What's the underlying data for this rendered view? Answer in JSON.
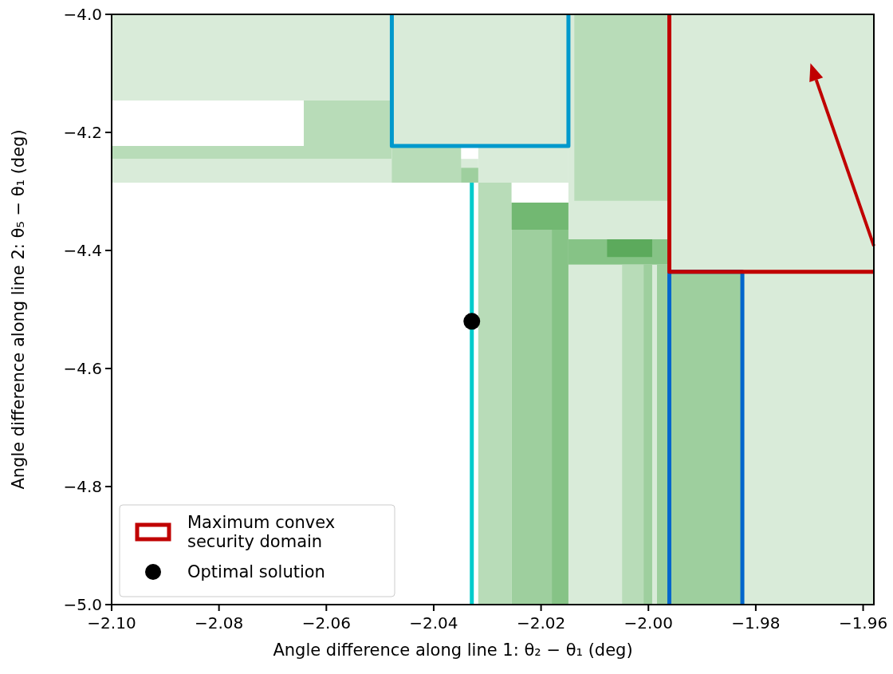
{
  "chart_data": {
    "type": "line",
    "xlabel": "Angle difference along line 1: θ₂ − θ₁ (deg)",
    "ylabel": "Angle difference along line 2: θ₅ − θ₁ (deg)",
    "xlim": [
      -2.1,
      -1.958
    ],
    "ylim": [
      -5.0,
      -4.0
    ],
    "xticks": [
      {
        "value": -2.1,
        "label": "−2.10"
      },
      {
        "value": -2.08,
        "label": "−2.08"
      },
      {
        "value": -2.06,
        "label": "−2.06"
      },
      {
        "value": -2.04,
        "label": "−2.04"
      },
      {
        "value": -2.02,
        "label": "−2.02"
      },
      {
        "value": -2.0,
        "label": "−2.00"
      },
      {
        "value": -1.98,
        "label": "−1.98"
      },
      {
        "value": -1.96,
        "label": "−1.96"
      }
    ],
    "yticks": [
      {
        "value": -5.0,
        "label": "−5.0"
      },
      {
        "value": -4.8,
        "label": "−4.8"
      },
      {
        "value": -4.6,
        "label": "−4.6"
      },
      {
        "value": -4.4,
        "label": "−4.4"
      },
      {
        "value": -4.2,
        "label": "−4.2"
      },
      {
        "value": -4.0,
        "label": "−4.0"
      }
    ],
    "legend": "bottom left",
    "series": [
      {
        "color": "#d9ebd9",
        "x": [
          -2.1,
          -2.0478
        ],
        "values": [
          null,
          null
        ],
        "lower": [
          -4.146,
          -4.146
        ],
        "upper": [
          -4.0,
          -4.0
        ]
      },
      {
        "color": "#d9ebd9",
        "x": [
          -2.0478,
          -2.0149
        ],
        "values": [
          null,
          null
        ],
        "lower": [
          -4.223,
          -4.223
        ],
        "upper": [
          -4.0,
          -4.0
        ]
      },
      {
        "color": "#d9ebd9",
        "x": [
          -2.0149,
          -1.9961
        ],
        "values": [
          null,
          null
        ],
        "lower": [
          -4.381,
          -4.381
        ],
        "upper": [
          -4.0,
          -4.0
        ]
      },
      {
        "color": "#b8dcb8",
        "x": [
          -2.0138,
          -1.9961
        ],
        "values": [
          null,
          null
        ],
        "lower": [
          -4.316,
          -4.316
        ],
        "upper": [
          -4.0,
          -4.0
        ]
      },
      {
        "color": "#d9ebd9",
        "x": [
          -1.9961,
          -1.958
        ],
        "values": [
          null,
          null
        ],
        "lower": [
          -4.436,
          -4.436
        ],
        "upper": [
          -4.0,
          -4.0
        ]
      },
      {
        "color": "#b8dcb8",
        "x": [
          -2.0642,
          -2.0478
        ],
        "values": [
          null,
          null
        ],
        "lower": [
          -4.223,
          -4.223
        ],
        "upper": [
          -4.146,
          -4.146
        ]
      },
      {
        "color": "#d9ebd9",
        "x": [
          -2.1,
          -2.0317
        ],
        "values": [
          null,
          null
        ],
        "lower": [
          -4.285,
          -4.285
        ],
        "upper": [
          -4.245,
          -4.245
        ]
      },
      {
        "color": "#b8dcb8",
        "x": [
          -2.1,
          -2.0478
        ],
        "values": [
          null,
          null
        ],
        "lower": [
          -4.245,
          -4.245
        ],
        "upper": [
          -4.223,
          -4.223
        ]
      },
      {
        "color": "#d9ebd9",
        "x": [
          -2.0317,
          -2.0149
        ],
        "values": [
          null,
          null
        ],
        "lower": [
          -4.285,
          -4.285
        ],
        "upper": [
          -4.223,
          -4.223
        ]
      },
      {
        "color": "#b8dcb8",
        "x": [
          -2.0478,
          -2.0349
        ],
        "values": [
          null,
          null
        ],
        "lower": [
          -4.285,
          -4.285
        ],
        "upper": [
          -4.223,
          -4.223
        ]
      },
      {
        "color": "#9ecf9e",
        "x": [
          -2.0349,
          -2.0317
        ],
        "values": [
          null,
          null
        ],
        "lower": [
          -4.285,
          -4.285
        ],
        "upper": [
          -4.26,
          -4.26
        ]
      },
      {
        "color": "#d9ebd9",
        "x": [
          -2.0149,
          -1.9961
        ],
        "values": [
          null,
          null
        ],
        "lower": [
          -5.0,
          -5.0
        ],
        "upper": [
          -4.424,
          -4.424
        ]
      },
      {
        "color": "#b8dcb8",
        "x": [
          -2.0317,
          -2.0255
        ],
        "values": [
          null,
          null
        ],
        "lower": [
          -5.0,
          -5.0
        ],
        "upper": [
          -4.285,
          -4.285
        ]
      },
      {
        "color": "#9ecf9e",
        "x": [
          -2.0255,
          -2.018
        ],
        "values": [
          null,
          null
        ],
        "lower": [
          -5.0,
          -5.0
        ],
        "upper": [
          -4.365,
          -4.365
        ]
      },
      {
        "color": "#86c386",
        "x": [
          -2.018,
          -2.0149
        ],
        "values": [
          null,
          null
        ],
        "lower": [
          -5.0,
          -5.0
        ],
        "upper": [
          -4.365,
          -4.365
        ]
      },
      {
        "color": "#72b872",
        "x": [
          -2.0255,
          -2.0149
        ],
        "values": [
          null,
          null
        ],
        "lower": [
          -4.365,
          -4.365
        ],
        "upper": [
          -4.319,
          -4.319
        ]
      },
      {
        "color": "#86c386",
        "x": [
          -2.0149,
          -1.9961
        ],
        "values": [
          null,
          null
        ],
        "lower": [
          -4.424,
          -4.424
        ],
        "upper": [
          -4.381,
          -4.381
        ]
      },
      {
        "color": "#5caa5c",
        "x": [
          -2.0077,
          -1.9993
        ],
        "values": [
          null,
          null
        ],
        "lower": [
          -4.411,
          -4.411
        ],
        "upper": [
          -4.381,
          -4.381
        ]
      },
      {
        "color": "#b8dcb8",
        "x": [
          -2.0049,
          -2.0009
        ],
        "values": [
          null,
          null
        ],
        "lower": [
          -5.0,
          -5.0
        ],
        "upper": [
          -4.424,
          -4.424
        ]
      },
      {
        "color": "#9ecf9e",
        "x": [
          -2.0009,
          -1.9993
        ],
        "values": [
          null,
          null
        ],
        "lower": [
          -5.0,
          -5.0
        ],
        "upper": [
          -4.424,
          -4.424
        ]
      },
      {
        "color": "#9ecf9e",
        "x": [
          -1.9984,
          -1.9961
        ],
        "values": [
          null,
          null
        ],
        "lower": [
          -5.0,
          -5.0
        ],
        "upper": [
          -4.424,
          -4.424
        ]
      },
      {
        "color": "#d9ebd9",
        "x": [
          -1.9825,
          -1.958
        ],
        "values": [
          null,
          null
        ],
        "lower": [
          -5.0,
          -5.0
        ],
        "upper": [
          -4.436,
          -4.436
        ]
      },
      {
        "color": "#9ecf9e",
        "x": [
          -1.9961,
          -1.9825
        ],
        "values": [
          null,
          null
        ],
        "lower": [
          -5.0,
          -5.0
        ],
        "upper": [
          -4.436,
          -4.436
        ]
      },
      {
        "color": "#00cccc",
        "x": [
          -2.0329,
          -2.0329
        ],
        "values": [
          -5.0,
          -4.285
        ]
      },
      {
        "color": "#0099cc",
        "x": [
          -2.0478,
          -2.0478,
          -2.0149,
          -2.0149
        ],
        "values": [
          -4.0,
          -4.223,
          -4.223,
          -4.0
        ]
      },
      {
        "color": "#0066cc",
        "x": [
          -1.9961,
          -1.9961,
          -1.9825,
          -1.9825
        ],
        "values": [
          -5.0,
          -4.436,
          -4.436,
          -5.0
        ]
      },
      {
        "name": "Maximum convex security domain",
        "color": "#c00000",
        "x": [
          -1.9961,
          -1.9961,
          -1.958
        ],
        "values": [
          -4.0,
          -4.436,
          -4.436
        ]
      },
      {
        "type": "scatter",
        "name": "Optimal solution",
        "color": "#000000",
        "marker": "circle",
        "x": [
          -2.0329
        ],
        "values": [
          -4.52
        ]
      }
    ]
  }
}
